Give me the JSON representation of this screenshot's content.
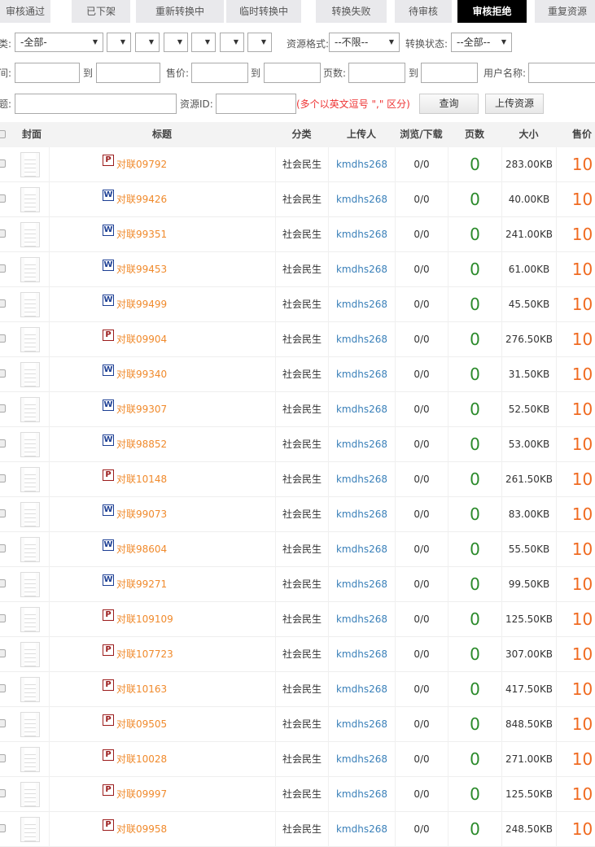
{
  "tabs": [
    {
      "label": "审核通过",
      "active": false
    },
    {
      "label": "已下架",
      "active": false
    },
    {
      "label": "重新转换中",
      "active": false
    },
    {
      "label": "临时转换中",
      "active": false
    },
    {
      "label": "转换失败",
      "active": false
    },
    {
      "label": "待审核",
      "active": false
    },
    {
      "label": "审核拒绝",
      "active": true
    },
    {
      "label": "重复资源",
      "active": false
    }
  ],
  "filters": {
    "category_label": "类:",
    "category_value": "-全部-",
    "format_label": "资源格式:",
    "format_value": "--不限--",
    "status_label": "转换状态:",
    "status_value": "--全部--",
    "time_label": "间:",
    "to": "到",
    "price_label": "售价:",
    "pages_label": "页数:",
    "username_label": "用户名称:",
    "title_label": "题:",
    "resource_id_label": "资源ID:",
    "resource_id_hint": "(多个以英文逗号 \",\" 区分)",
    "query_button": "查询",
    "upload_button": "上传资源"
  },
  "table": {
    "headers": {
      "cover": "封面",
      "title": "标题",
      "category": "分类",
      "uploader": "上传人",
      "views": "浏览/下载",
      "pages": "页数",
      "size": "大小",
      "price": "售价"
    },
    "rows": [
      {
        "type": "P",
        "title": "对联09792",
        "category": "社会民生",
        "uploader": "kmdhs268",
        "views": "0/0",
        "pages": "0",
        "size": "283.00KB",
        "price": "10"
      },
      {
        "type": "W",
        "title": "对联99426",
        "category": "社会民生",
        "uploader": "kmdhs268",
        "views": "0/0",
        "pages": "0",
        "size": "40.00KB",
        "price": "10"
      },
      {
        "type": "W",
        "title": "对联99351",
        "category": "社会民生",
        "uploader": "kmdhs268",
        "views": "0/0",
        "pages": "0",
        "size": "241.00KB",
        "price": "10"
      },
      {
        "type": "W",
        "title": "对联99453",
        "category": "社会民生",
        "uploader": "kmdhs268",
        "views": "0/0",
        "pages": "0",
        "size": "61.00KB",
        "price": "10"
      },
      {
        "type": "W",
        "title": "对联99499",
        "category": "社会民生",
        "uploader": "kmdhs268",
        "views": "0/0",
        "pages": "0",
        "size": "45.50KB",
        "price": "10"
      },
      {
        "type": "P",
        "title": "对联09904",
        "category": "社会民生",
        "uploader": "kmdhs268",
        "views": "0/0",
        "pages": "0",
        "size": "276.50KB",
        "price": "10"
      },
      {
        "type": "W",
        "title": "对联99340",
        "category": "社会民生",
        "uploader": "kmdhs268",
        "views": "0/0",
        "pages": "0",
        "size": "31.50KB",
        "price": "10"
      },
      {
        "type": "W",
        "title": "对联99307",
        "category": "社会民生",
        "uploader": "kmdhs268",
        "views": "0/0",
        "pages": "0",
        "size": "52.50KB",
        "price": "10"
      },
      {
        "type": "W",
        "title": "对联98852",
        "category": "社会民生",
        "uploader": "kmdhs268",
        "views": "0/0",
        "pages": "0",
        "size": "53.00KB",
        "price": "10"
      },
      {
        "type": "P",
        "title": "对联10148",
        "category": "社会民生",
        "uploader": "kmdhs268",
        "views": "0/0",
        "pages": "0",
        "size": "261.50KB",
        "price": "10"
      },
      {
        "type": "W",
        "title": "对联99073",
        "category": "社会民生",
        "uploader": "kmdhs268",
        "views": "0/0",
        "pages": "0",
        "size": "83.00KB",
        "price": "10"
      },
      {
        "type": "W",
        "title": "对联98604",
        "category": "社会民生",
        "uploader": "kmdhs268",
        "views": "0/0",
        "pages": "0",
        "size": "55.50KB",
        "price": "10"
      },
      {
        "type": "W",
        "title": "对联99271",
        "category": "社会民生",
        "uploader": "kmdhs268",
        "views": "0/0",
        "pages": "0",
        "size": "99.50KB",
        "price": "10"
      },
      {
        "type": "P",
        "title": "对联109109",
        "category": "社会民生",
        "uploader": "kmdhs268",
        "views": "0/0",
        "pages": "0",
        "size": "125.50KB",
        "price": "10"
      },
      {
        "type": "P",
        "title": "对联107723",
        "category": "社会民生",
        "uploader": "kmdhs268",
        "views": "0/0",
        "pages": "0",
        "size": "307.00KB",
        "price": "10"
      },
      {
        "type": "P",
        "title": "对联10163",
        "category": "社会民生",
        "uploader": "kmdhs268",
        "views": "0/0",
        "pages": "0",
        "size": "417.50KB",
        "price": "10"
      },
      {
        "type": "P",
        "title": "对联09505",
        "category": "社会民生",
        "uploader": "kmdhs268",
        "views": "0/0",
        "pages": "0",
        "size": "848.50KB",
        "price": "10"
      },
      {
        "type": "P",
        "title": "对联10028",
        "category": "社会民生",
        "uploader": "kmdhs268",
        "views": "0/0",
        "pages": "0",
        "size": "271.00KB",
        "price": "10"
      },
      {
        "type": "P",
        "title": "对联09997",
        "category": "社会民生",
        "uploader": "kmdhs268",
        "views": "0/0",
        "pages": "0",
        "size": "125.50KB",
        "price": "10"
      },
      {
        "type": "P",
        "title": "对联09958",
        "category": "社会民生",
        "uploader": "kmdhs268",
        "views": "0/0",
        "pages": "0",
        "size": "248.50KB",
        "price": "10"
      }
    ]
  }
}
